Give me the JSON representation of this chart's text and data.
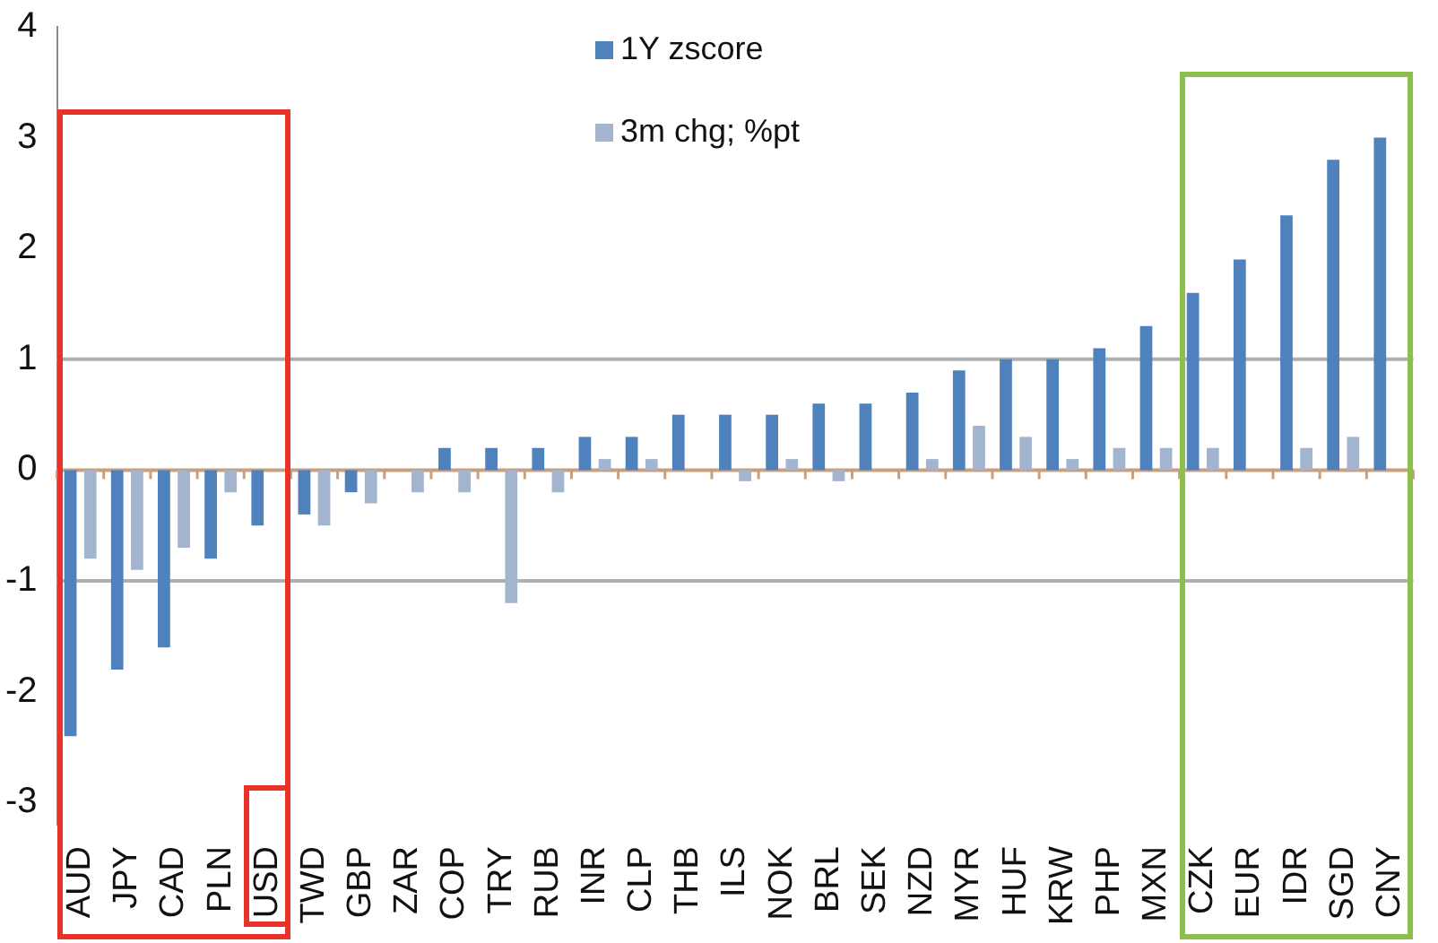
{
  "chart_data": {
    "type": "bar",
    "categories": [
      "AUD",
      "JPY",
      "CAD",
      "PLN",
      "USD",
      "TWD",
      "GBP",
      "ZAR",
      "COP",
      "TRY",
      "RUB",
      "INR",
      "CLP",
      "THB",
      "ILS",
      "NOK",
      "BRL",
      "SEK",
      "NZD",
      "MYR",
      "HUF",
      "KRW",
      "PHP",
      "MXN",
      "CZK",
      "EUR",
      "IDR",
      "SGD",
      "CNY"
    ],
    "series": [
      {
        "name": "1Y zscore",
        "color": "#4f81bd",
        "values": [
          -2.4,
          -1.8,
          -1.6,
          -0.8,
          -0.5,
          -0.4,
          -0.2,
          0,
          0.2,
          0.2,
          0.2,
          0.3,
          0.3,
          0.5,
          0.5,
          0.5,
          0.6,
          0.6,
          0.7,
          0.9,
          1.0,
          1.0,
          1.1,
          1.3,
          1.6,
          1.9,
          2.3,
          2.8,
          3.0
        ]
      },
      {
        "name": "3m chg; %pt",
        "color": "#a3b4cf",
        "values": [
          -0.8,
          -0.9,
          -0.7,
          -0.2,
          0,
          -0.5,
          -0.3,
          -0.2,
          -0.2,
          -1.2,
          -0.2,
          0.1,
          0.1,
          0,
          -0.1,
          0.1,
          -0.1,
          0,
          0.1,
          0.4,
          0.3,
          0.1,
          0.2,
          0.2,
          0.2,
          0,
          0.2,
          0.3,
          null
        ]
      }
    ],
    "ylim": [
      -3.2,
      4
    ],
    "yticks": [
      -3,
      -2,
      -1,
      0,
      1,
      2,
      3,
      4
    ],
    "ref_lines": [
      {
        "axis": "y",
        "value": 0,
        "color": "#c8a080"
      },
      {
        "axis": "y",
        "value": 1,
        "color": "#b0b0b0"
      },
      {
        "axis": "y",
        "value": -1,
        "color": "#b0b0b0"
      }
    ],
    "legend": "top"
  }
}
